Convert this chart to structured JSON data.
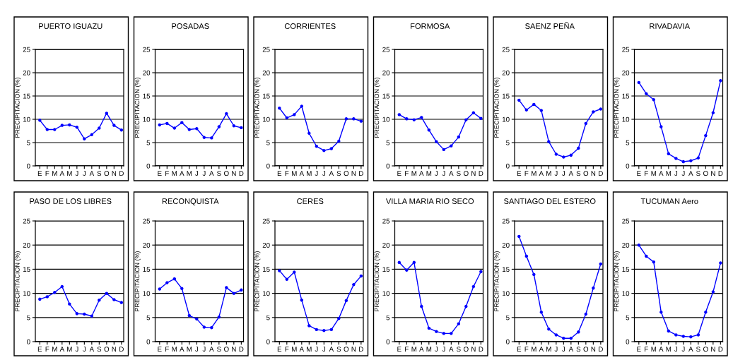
{
  "chart_data": [
    {
      "type": "line",
      "title": "PUERTO IGUAZU",
      "ylabel": "PRECIPITACION (%)",
      "categories": [
        "E",
        "F",
        "M",
        "A",
        "M",
        "J",
        "J",
        "A",
        "S",
        "O",
        "N",
        "D"
      ],
      "ylim": [
        0,
        25
      ],
      "yticks": [
        0,
        5,
        10,
        15,
        20,
        25
      ],
      "grid": "y",
      "marker": "circle",
      "series": [
        {
          "color": "#0000ff",
          "values": [
            9.8,
            7.8,
            7.8,
            8.7,
            8.8,
            8.3,
            5.8,
            6.7,
            8.1,
            11.3,
            8.7,
            7.7
          ]
        }
      ]
    },
    {
      "type": "line",
      "title": "POSADAS",
      "ylabel": "PRECIPITACION (%)",
      "categories": [
        "E",
        "F",
        "M",
        "A",
        "M",
        "J",
        "J",
        "A",
        "S",
        "O",
        "N",
        "D"
      ],
      "ylim": [
        0,
        25
      ],
      "yticks": [
        0,
        5,
        10,
        15,
        20,
        25
      ],
      "grid": "y",
      "marker": "circle",
      "series": [
        {
          "color": "#0000ff",
          "values": [
            8.8,
            9.1,
            8.1,
            9.3,
            7.8,
            8.0,
            6.1,
            6.0,
            8.4,
            11.2,
            8.6,
            8.2
          ]
        }
      ]
    },
    {
      "type": "line",
      "title": "CORRIENTES",
      "ylabel": "PRECIPITACION (%)",
      "categories": [
        "E",
        "F",
        "M",
        "A",
        "M",
        "J",
        "J",
        "A",
        "S",
        "O",
        "N",
        "D"
      ],
      "ylim": [
        0,
        25
      ],
      "yticks": [
        0,
        5,
        10,
        15,
        20,
        25
      ],
      "grid": "y",
      "marker": "circle",
      "series": [
        {
          "color": "#0000ff",
          "values": [
            12.4,
            10.3,
            11.0,
            12.8,
            7.0,
            4.2,
            3.3,
            3.7,
            5.3,
            10.1,
            10.1,
            9.6
          ]
        }
      ]
    },
    {
      "type": "line",
      "title": "FORMOSA",
      "ylabel": "PRECIPITACION (%)",
      "categories": [
        "E",
        "F",
        "M",
        "A",
        "M",
        "J",
        "J",
        "A",
        "S",
        "O",
        "N",
        "D"
      ],
      "ylim": [
        0,
        25
      ],
      "yticks": [
        0,
        5,
        10,
        15,
        20,
        25
      ],
      "grid": "y",
      "marker": "circle",
      "series": [
        {
          "color": "#0000ff",
          "values": [
            11.0,
            10.1,
            9.9,
            10.4,
            7.7,
            5.2,
            3.5,
            4.3,
            6.2,
            9.9,
            11.4,
            10.2
          ]
        }
      ]
    },
    {
      "type": "line",
      "title": "SAENZ PEÑA",
      "ylabel": "PRECIPITACION (%)",
      "categories": [
        "E",
        "F",
        "M",
        "A",
        "M",
        "J",
        "J",
        "A",
        "S",
        "O",
        "N",
        "D"
      ],
      "ylim": [
        0,
        25
      ],
      "yticks": [
        0,
        5,
        10,
        15,
        20,
        25
      ],
      "grid": "y",
      "marker": "circle",
      "series": [
        {
          "color": "#0000ff",
          "values": [
            14.1,
            12.0,
            13.2,
            11.9,
            5.2,
            2.5,
            1.9,
            2.3,
            3.8,
            9.1,
            11.6,
            12.2
          ]
        }
      ]
    },
    {
      "type": "line",
      "title": "RIVADAVIA",
      "ylabel": "PRECIPITACION (%)",
      "categories": [
        "E",
        "F",
        "M",
        "A",
        "M",
        "J",
        "J",
        "A",
        "S",
        "O",
        "N",
        "D"
      ],
      "ylim": [
        0,
        25
      ],
      "yticks": [
        0,
        5,
        10,
        15,
        20,
        25
      ],
      "grid": "y",
      "marker": "circle",
      "series": [
        {
          "color": "#0000ff",
          "values": [
            17.9,
            15.5,
            14.2,
            8.4,
            2.6,
            1.6,
            0.9,
            1.1,
            1.7,
            6.5,
            11.4,
            18.3
          ]
        }
      ]
    },
    {
      "type": "line",
      "title": "PASO DE LOS LIBRES",
      "ylabel": "PRECIPITACION (%)",
      "categories": [
        "E",
        "F",
        "M",
        "A",
        "M",
        "J",
        "J",
        "A",
        "S",
        "O",
        "N",
        "D"
      ],
      "ylim": [
        0,
        25
      ],
      "yticks": [
        0,
        5,
        10,
        15,
        20,
        25
      ],
      "grid": "y",
      "marker": "circle",
      "series": [
        {
          "color": "#0000ff",
          "values": [
            8.8,
            9.3,
            10.2,
            11.4,
            7.8,
            5.8,
            5.7,
            5.3,
            8.6,
            10.0,
            8.7,
            8.1
          ]
        }
      ]
    },
    {
      "type": "line",
      "title": "RECONQUISTA",
      "ylabel": "PRECIPITACION (%)",
      "categories": [
        "E",
        "F",
        "M",
        "A",
        "M",
        "J",
        "J",
        "A",
        "S",
        "O",
        "N",
        "D"
      ],
      "ylim": [
        0,
        25
      ],
      "yticks": [
        0,
        5,
        10,
        15,
        20,
        25
      ],
      "grid": "y",
      "marker": "circle",
      "series": [
        {
          "color": "#0000ff",
          "values": [
            10.9,
            12.2,
            13.0,
            11.0,
            5.4,
            4.7,
            3.0,
            2.9,
            5.1,
            11.2,
            10.0,
            10.7
          ]
        }
      ]
    },
    {
      "type": "line",
      "title": "CERES",
      "ylabel": "PRECIPITACION (%)",
      "categories": [
        "E",
        "F",
        "M",
        "A",
        "M",
        "J",
        "J",
        "A",
        "S",
        "O",
        "N",
        "D"
      ],
      "ylim": [
        0,
        25
      ],
      "yticks": [
        0,
        5,
        10,
        15,
        20,
        25
      ],
      "grid": "y",
      "marker": "circle",
      "series": [
        {
          "color": "#0000ff",
          "values": [
            14.7,
            12.9,
            14.4,
            8.6,
            3.3,
            2.5,
            2.3,
            2.5,
            4.8,
            8.5,
            11.8,
            13.6
          ]
        }
      ]
    },
    {
      "type": "line",
      "title": "VILLA MARIA RIO SECO",
      "ylabel": "PRECIPITACION (%)",
      "categories": [
        "E",
        "F",
        "M",
        "A",
        "M",
        "J",
        "J",
        "A",
        "S",
        "O",
        "N",
        "D"
      ],
      "ylim": [
        0,
        25
      ],
      "yticks": [
        0,
        5,
        10,
        15,
        20,
        25
      ],
      "grid": "y",
      "marker": "circle",
      "series": [
        {
          "color": "#0000ff",
          "values": [
            16.4,
            14.8,
            16.4,
            7.3,
            2.8,
            2.1,
            1.7,
            1.7,
            3.7,
            7.3,
            11.4,
            14.5
          ]
        }
      ]
    },
    {
      "type": "line",
      "title": "SANTIAGO DEL ESTERO",
      "ylabel": "PRECIPITACION (%)",
      "categories": [
        "E",
        "F",
        "M",
        "A",
        "M",
        "J",
        "J",
        "A",
        "S",
        "O",
        "N",
        "D"
      ],
      "ylim": [
        0,
        25
      ],
      "yticks": [
        0,
        5,
        10,
        15,
        20,
        25
      ],
      "grid": "y",
      "marker": "circle",
      "series": [
        {
          "color": "#0000ff",
          "values": [
            21.8,
            17.7,
            13.9,
            6.1,
            2.6,
            1.4,
            0.7,
            0.7,
            2.0,
            5.7,
            11.1,
            16.1
          ]
        }
      ]
    },
    {
      "type": "line",
      "title": "TUCUMAN Aero",
      "ylabel": "PRECIPITACION (%)",
      "categories": [
        "E",
        "F",
        "M",
        "A",
        "M",
        "J",
        "J",
        "A",
        "S",
        "O",
        "N",
        "D"
      ],
      "ylim": [
        0,
        25
      ],
      "yticks": [
        0,
        5,
        10,
        15,
        20,
        25
      ],
      "grid": "y",
      "marker": "circle",
      "series": [
        {
          "color": "#0000ff",
          "values": [
            20.0,
            17.7,
            16.5,
            6.1,
            2.2,
            1.4,
            1.1,
            1.0,
            1.4,
            6.1,
            10.3,
            16.3
          ]
        }
      ]
    }
  ]
}
